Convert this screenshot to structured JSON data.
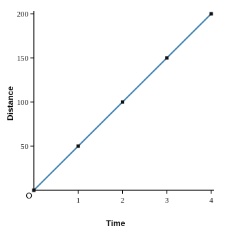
{
  "chart_data": {
    "type": "line",
    "title": "",
    "xlabel": "Time",
    "ylabel": "Distance",
    "x": [
      0,
      1,
      2,
      3,
      4
    ],
    "series": [
      {
        "values": [
          0,
          50,
          100,
          150,
          200
        ],
        "color": "#3a7fb0"
      }
    ],
    "xlim": [
      0,
      4
    ],
    "ylim": [
      0,
      200
    ],
    "x_ticks": [
      "1",
      "2",
      "3",
      "4"
    ],
    "y_ticks": [
      "50",
      "100",
      "150",
      "200"
    ],
    "origin_label": "O",
    "grid": false,
    "marker_color": "#111111",
    "axis_color": "#000000"
  }
}
